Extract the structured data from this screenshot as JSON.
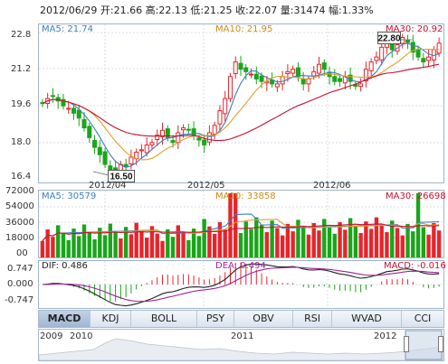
{
  "header": {
    "date": "2012/06/29",
    "open_label": "开:",
    "open": "21.66",
    "high_label": "高:",
    "high": "22.13",
    "low_label": "低:",
    "low": "21.25",
    "close_label": "收:",
    "close": "22.07",
    "volume_label": "量:",
    "volume": "31474",
    "change_label": "幅:",
    "change": "1.33%"
  },
  "price_panel": {
    "ma5_label": "MA5: 21.74",
    "ma10_label": "MA10: 21.95",
    "ma30_label": "MA30: 20.92",
    "y_ticks": [
      "22.8",
      "21.2",
      "19.6",
      "18.0",
      "16.4"
    ],
    "x_ticks": [
      "2012/04",
      "2012/05",
      "2012/06"
    ],
    "high_callout": "22.80",
    "low_callout": "16.50"
  },
  "volume_panel": {
    "ma5_label": "MA5: 30579",
    "ma10_label": "MA10: 33858",
    "ma30_label": "MA30: 26698",
    "y_ticks": [
      "72000",
      "54000",
      "36000",
      "18000",
      "00"
    ]
  },
  "macd_panel": {
    "dif_label": "DIF: 0.486",
    "dea_label": "DEA: 0.494",
    "macd_label": "MACD: -0.016",
    "y_ticks": [
      "0.747",
      "0.000",
      "-0.747"
    ]
  },
  "tabs": [
    "MACD",
    "KDJ",
    "BOLL",
    "PSY",
    "OBV",
    "RSI",
    "WVAD",
    "CCI"
  ],
  "active_tab": "MACD",
  "navigator": {
    "years": [
      "2009",
      "2010",
      "2011",
      "2012"
    ]
  },
  "colors": {
    "up": "#e8242b",
    "down": "#1aa51a",
    "ma5": "#3d7fc1",
    "ma10": "#e0a030",
    "ma30": "#c8102e",
    "dif": "#222222",
    "dea": "#a0229a",
    "grid": "#d6deea",
    "frame": "#9fb3cc"
  },
  "chart_data": {
    "type": "candlestick",
    "title": "",
    "x_ticks": [
      "2012/04",
      "2012/05",
      "2012/06"
    ],
    "ylim": [
      16.4,
      22.8
    ],
    "visible_extremes": {
      "high": 22.8,
      "low": 16.5
    },
    "last_bar": {
      "open": 21.66,
      "high": 22.13,
      "low": 21.25,
      "close": 22.07,
      "volume": 31474
    },
    "closes": [
      19.6,
      19.8,
      19.9,
      19.7,
      19.5,
      19.4,
      19.2,
      19.0,
      18.6,
      18.2,
      17.8,
      17.5,
      17.1,
      16.9,
      16.8,
      17.1,
      17.0,
      17.4,
      17.6,
      17.7,
      17.9,
      18.0,
      18.3,
      18.5,
      18.2,
      18.0,
      18.4,
      18.6,
      18.5,
      18.3,
      18.1,
      17.9,
      18.4,
      18.7,
      19.3,
      19.8,
      20.7,
      21.3,
      21.0,
      20.9,
      20.8,
      20.6,
      20.5,
      20.5,
      20.4,
      20.4,
      20.7,
      20.9,
      21.0,
      20.7,
      20.4,
      20.6,
      20.9,
      21.2,
      21.0,
      20.7,
      20.5,
      20.5,
      20.7,
      20.5,
      20.3,
      20.4,
      21.0,
      21.3,
      21.5,
      21.9,
      22.1,
      21.8,
      22.0,
      22.3,
      22.1,
      21.7,
      21.5,
      21.3,
      21.5,
      21.8,
      22.07
    ],
    "volume_ylim": [
      0,
      72000
    ],
    "volume_ma": {
      "ma5": 30579,
      "ma10": 33858,
      "ma30": 26698
    },
    "macd": {
      "ylim": [
        -0.747,
        0.747
      ],
      "dif": 0.486,
      "dea": 0.494,
      "macd": -0.016
    }
  }
}
